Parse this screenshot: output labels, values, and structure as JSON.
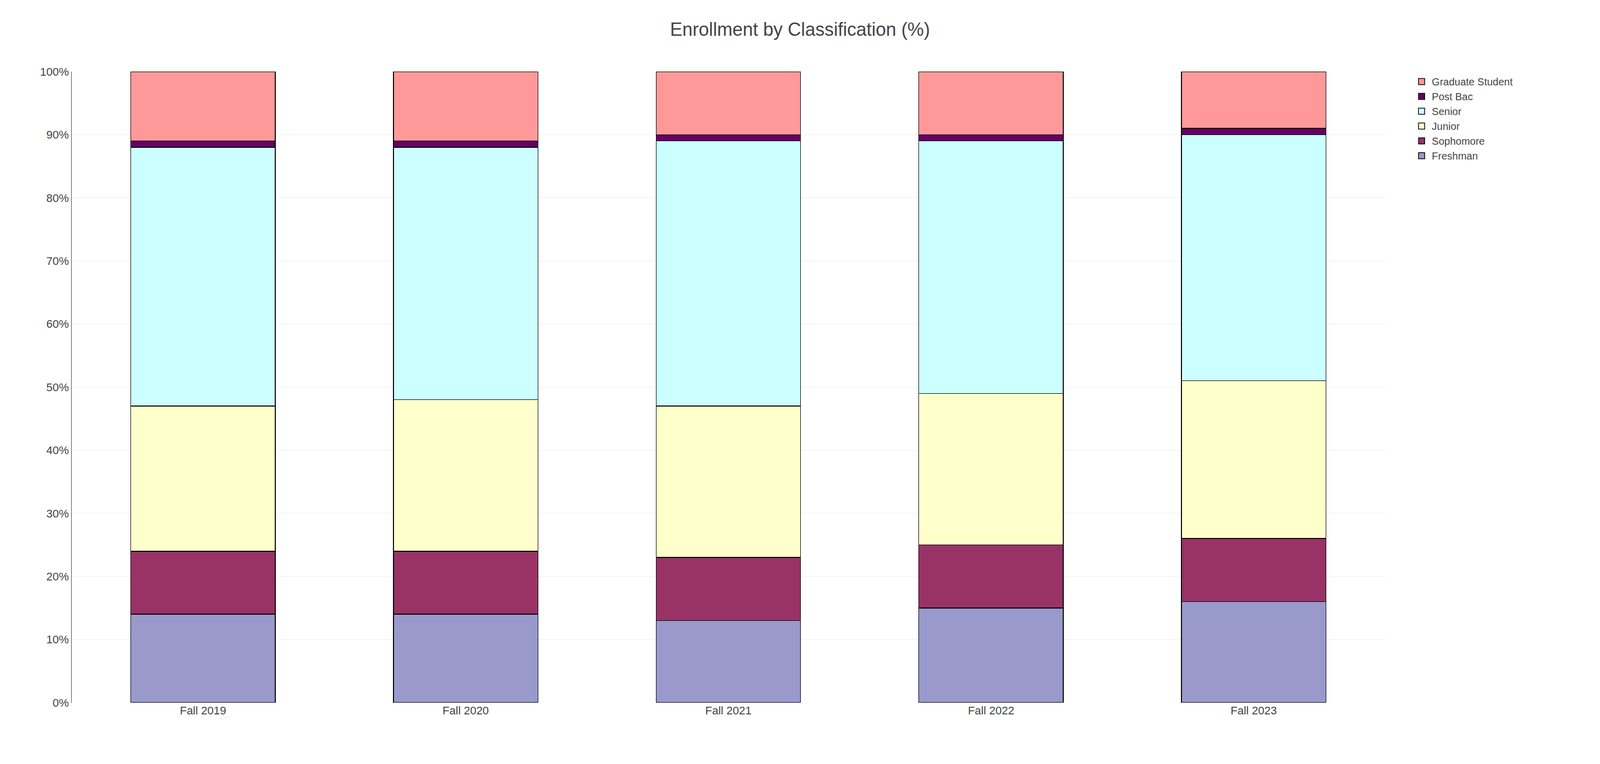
{
  "chart_data": {
    "type": "bar",
    "title": "Enrollment by Classification (%)",
    "categories": [
      "Fall 2019",
      "Fall 2020",
      "Fall 2021",
      "Fall 2022",
      "Fall 2023"
    ],
    "series": [
      {
        "name": "Freshman",
        "color": "#9999cc",
        "values": [
          14,
          14,
          13,
          15,
          16
        ]
      },
      {
        "name": "Sophomore",
        "color": "#993366",
        "values": [
          10,
          10,
          10,
          10,
          10
        ]
      },
      {
        "name": "Junior",
        "color": "#ffffcc",
        "values": [
          23,
          24,
          24,
          24,
          25
        ]
      },
      {
        "name": "Senior",
        "color": "#ccffff",
        "values": [
          41,
          40,
          42,
          40,
          39
        ]
      },
      {
        "name": "Post Bac",
        "color": "#660066",
        "values": [
          1,
          1,
          1,
          1,
          1
        ]
      },
      {
        "name": "Graduate Student",
        "color": "#ff9999",
        "values": [
          11,
          11,
          10,
          10,
          9
        ]
      }
    ],
    "stacked": true,
    "ylim": [
      0,
      100
    ],
    "yticks": [
      {
        "value": 0,
        "label": "0%"
      },
      {
        "value": 10,
        "label": "10%"
      },
      {
        "value": 20,
        "label": "20%"
      },
      {
        "value": 30,
        "label": "30%"
      },
      {
        "value": 40,
        "label": "40%"
      },
      {
        "value": 50,
        "label": "50%"
      },
      {
        "value": 60,
        "label": "60%"
      },
      {
        "value": 70,
        "label": "70%"
      },
      {
        "value": 80,
        "label": "80%"
      },
      {
        "value": 90,
        "label": "90%"
      },
      {
        "value": 100,
        "label": "100%"
      }
    ],
    "grid": true,
    "legend": "right"
  }
}
